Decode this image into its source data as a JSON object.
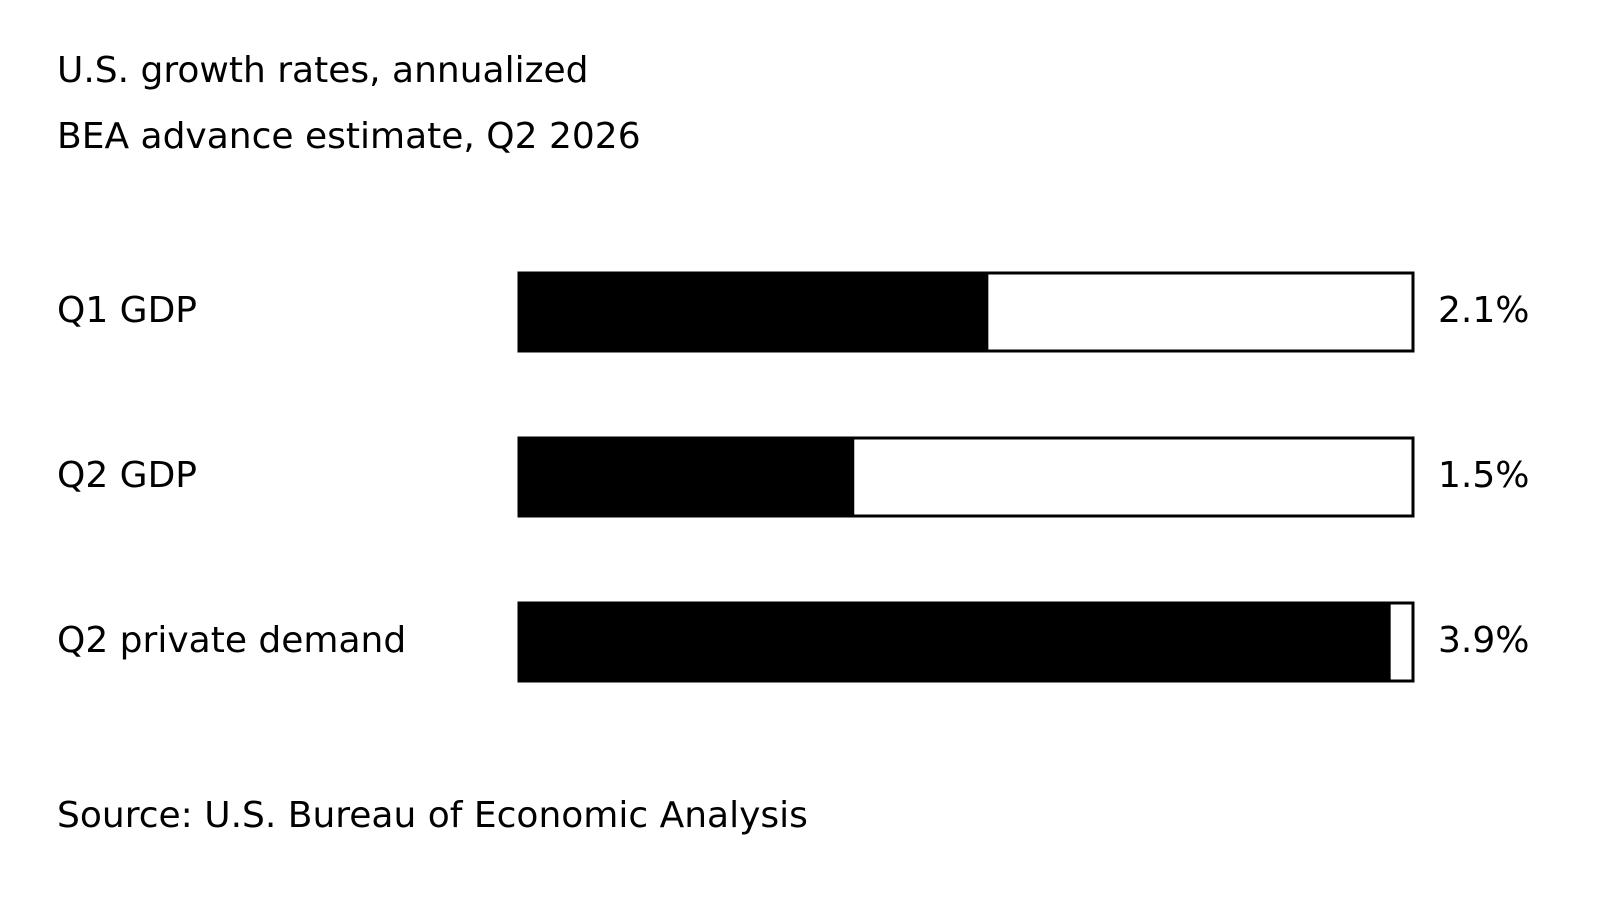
{
  "chart_data": {
    "type": "bar",
    "orientation": "horizontal",
    "title": "U.S. growth rates, annualized",
    "subtitle": "BEA advance estimate, Q2 2026",
    "categories": [
      "Q1 GDP",
      "Q2 GDP",
      "Q2 private demand"
    ],
    "values": [
      2.1,
      1.5,
      3.9
    ],
    "value_labels": [
      "2.1%",
      "1.5%",
      "3.9%"
    ],
    "color": "#000000",
    "xlim": [
      0,
      4
    ],
    "source": "Source: U.S. Bureau of Economic Analysis"
  }
}
